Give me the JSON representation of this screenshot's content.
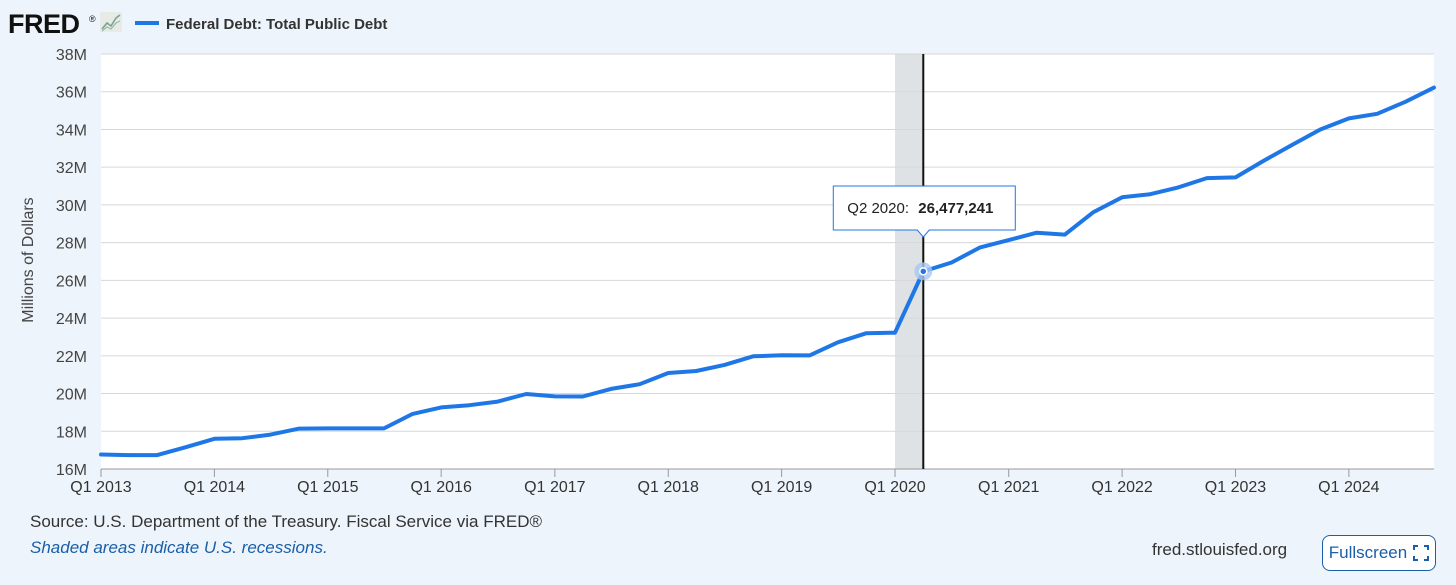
{
  "header": {
    "logo_text": "FRED",
    "logo_mark": "®",
    "logo_icon": "line-chart-icon",
    "legend_label": "Federal Debt: Total Public Debt"
  },
  "colors": {
    "series": "#1f77e6",
    "background": "#eef4fb",
    "plot": "#ffffff",
    "grid": "#d7d7d7",
    "recession": "#dfe2e5",
    "link": "#1a5fa8"
  },
  "tooltip": {
    "period": "Q2 2020:",
    "value": "26,477,241"
  },
  "chart_data": {
    "type": "line",
    "xlabel": "",
    "ylabel": "Millions of Dollars",
    "ylim": [
      16000000,
      38000000
    ],
    "xlim": [
      "2013-01-01",
      "2024-10-01"
    ],
    "y_ticks": [
      {
        "value": 16000000,
        "label": "16M"
      },
      {
        "value": 18000000,
        "label": "18M"
      },
      {
        "value": 20000000,
        "label": "20M"
      },
      {
        "value": 22000000,
        "label": "22M"
      },
      {
        "value": 24000000,
        "label": "24M"
      },
      {
        "value": 26000000,
        "label": "26M"
      },
      {
        "value": 28000000,
        "label": "28M"
      },
      {
        "value": 30000000,
        "label": "30M"
      },
      {
        "value": 32000000,
        "label": "32M"
      },
      {
        "value": 34000000,
        "label": "34M"
      },
      {
        "value": 36000000,
        "label": "36M"
      },
      {
        "value": 38000000,
        "label": "38M"
      }
    ],
    "x_ticks": [
      {
        "date": "2013-01-01",
        "label": "Q1 2013"
      },
      {
        "date": "2014-01-01",
        "label": "Q1 2014"
      },
      {
        "date": "2015-01-01",
        "label": "Q1 2015"
      },
      {
        "date": "2016-01-01",
        "label": "Q1 2016"
      },
      {
        "date": "2017-01-01",
        "label": "Q1 2017"
      },
      {
        "date": "2018-01-01",
        "label": "Q1 2018"
      },
      {
        "date": "2019-01-01",
        "label": "Q1 2019"
      },
      {
        "date": "2020-01-01",
        "label": "Q1 2020"
      },
      {
        "date": "2021-01-01",
        "label": "Q1 2021"
      },
      {
        "date": "2022-01-01",
        "label": "Q1 2022"
      },
      {
        "date": "2023-01-01",
        "label": "Q1 2023"
      },
      {
        "date": "2024-01-01",
        "label": "Q1 2024"
      }
    ],
    "recession": {
      "start": "2020-01-01",
      "end": "2020-04-01"
    },
    "highlight": {
      "date": "2020-04-01",
      "value": 26477241
    },
    "grid": true,
    "legend": "top-left",
    "series": [
      {
        "name": "Federal Debt: Total Public Debt",
        "x": [
          "2013-01-01",
          "2013-04-01",
          "2013-07-01",
          "2013-10-01",
          "2014-01-01",
          "2014-04-01",
          "2014-07-01",
          "2014-10-01",
          "2015-01-01",
          "2015-04-01",
          "2015-07-01",
          "2015-10-01",
          "2016-01-01",
          "2016-04-01",
          "2016-07-01",
          "2016-10-01",
          "2017-01-01",
          "2017-04-01",
          "2017-07-01",
          "2017-10-01",
          "2018-01-01",
          "2018-04-01",
          "2018-07-01",
          "2018-10-01",
          "2019-01-01",
          "2019-04-01",
          "2019-07-01",
          "2019-10-01",
          "2020-01-01",
          "2020-04-01",
          "2020-07-01",
          "2020-10-01",
          "2021-01-01",
          "2021-04-01",
          "2021-07-01",
          "2021-10-01",
          "2022-01-01",
          "2022-04-01",
          "2022-07-01",
          "2022-10-01",
          "2023-01-01",
          "2023-04-01",
          "2023-07-01",
          "2023-10-01",
          "2024-01-01",
          "2024-04-01",
          "2024-07-01",
          "2024-10-01"
        ],
        "values": [
          16771000,
          16739000,
          16738000,
          17156000,
          17601000,
          17633000,
          17824000,
          18141000,
          18152000,
          18151000,
          18151000,
          18922000,
          19264000,
          19381000,
          19573000,
          19977000,
          19847000,
          19845000,
          20245000,
          20493000,
          21090000,
          21195000,
          21516000,
          21974000,
          22028000,
          22023000,
          22719000,
          23201000,
          23224000,
          26477241,
          26946000,
          27748000,
          28133000,
          28529000,
          28428000,
          29617000,
          30401000,
          30568000,
          30928000,
          31420000,
          31459000,
          32332000,
          33168000,
          33999000,
          34587000,
          34831000,
          35464000,
          36218000
        ]
      }
    ]
  },
  "footer": {
    "source": "Source: U.S. Department of the Treasury. Fiscal Service via FRED®",
    "shaded_note": "Shaded areas indicate U.S. recessions.",
    "site_url": "fred.stlouisfed.org",
    "fullscreen_label": "Fullscreen",
    "fullscreen_icon": "expand-icon"
  }
}
